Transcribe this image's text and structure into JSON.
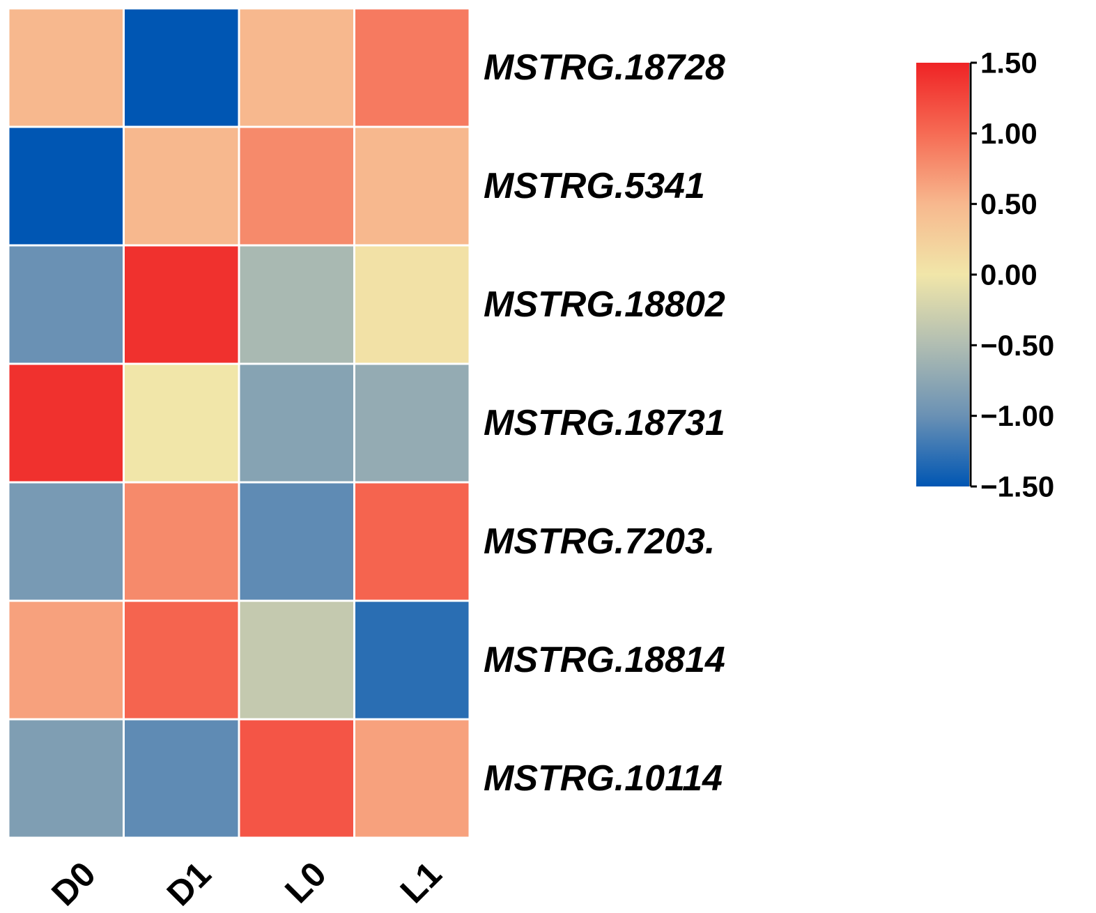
{
  "chart_data": {
    "type": "heatmap",
    "title": "",
    "xlabel": "",
    "ylabel": "",
    "columns": [
      "D0",
      "D1",
      "L0",
      "L1"
    ],
    "rows": [
      "MSTRG.18728",
      "MSTRG.5341",
      "MSTRG.18802",
      "MSTRG.18731",
      "MSTRG.7203.",
      "MSTRG.18814",
      "MSTRG.10114"
    ],
    "values": [
      [
        0.5,
        -1.5,
        0.5,
        0.9
      ],
      [
        -1.5,
        0.5,
        0.8,
        0.5
      ],
      [
        -1.0,
        1.4,
        -0.55,
        0.05
      ],
      [
        1.4,
        0.0,
        -0.8,
        -0.7
      ],
      [
        -0.9,
        0.8,
        -1.05,
        1.05
      ],
      [
        0.65,
        1.05,
        -0.35,
        -1.3
      ],
      [
        -0.85,
        -1.05,
        1.15,
        0.65
      ]
    ],
    "colorbar": {
      "range": [
        -1.5,
        1.5
      ],
      "ticks": [
        1.5,
        1.0,
        0.5,
        0.0,
        -0.5,
        -1.0,
        -1.5
      ],
      "tick_labels": [
        "1.50",
        "1.00",
        "0.50",
        "0.00",
        "−0.50",
        "−1.00",
        "−1.50"
      ],
      "stops": [
        {
          "value": -1.5,
          "color": "#0056b3"
        },
        {
          "value": -1.0,
          "color": "#6a91b4"
        },
        {
          "value": -0.5,
          "color": "#b0bdb2"
        },
        {
          "value": 0.0,
          "color": "#f1e6a9"
        },
        {
          "value": 0.5,
          "color": "#f7b88e"
        },
        {
          "value": 1.0,
          "color": "#f66b54"
        },
        {
          "value": 1.5,
          "color": "#ef2325"
        }
      ],
      "position": "right"
    },
    "grid_line_color": "#ffffff"
  }
}
